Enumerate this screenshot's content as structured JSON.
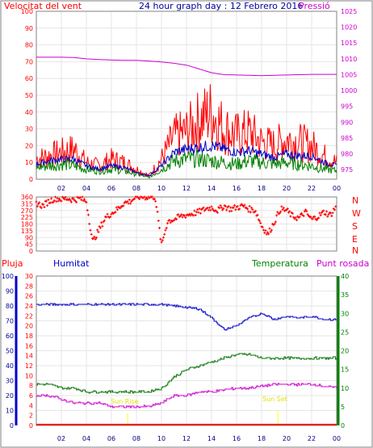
{
  "header": {
    "wind_label": "Velocitat del vent",
    "title": "24 hour graph day : 12 Febrero 2016",
    "pressure_label": "Pressió"
  },
  "direction_labels": [
    "N",
    "W",
    "S",
    "E",
    "N"
  ],
  "lower_header": {
    "rain_label": "Pluja",
    "humidity_label": "Humitat",
    "temp_label": "Temperatura",
    "dew_label": "Punt rosada"
  },
  "annotations": {
    "sunrise": "Sun Rise",
    "sunset": "Sun Set"
  },
  "colors": {
    "wind": "#ff0000",
    "wind_avg": "#0000c8",
    "wind_green": "#008000",
    "pressure": "#cc00cc",
    "direction": "#ff0000",
    "humidity": "#0000c8",
    "temperature": "#007000",
    "dewpoint": "#cc00cc",
    "rain": "#ff0000",
    "sun_marker": "#ffff00",
    "text_blue": "#0000a0",
    "text_green": "#008000"
  },
  "chart_data": [
    {
      "type": "line",
      "name": "wind-pressure",
      "x_ticks": [
        "02",
        "04",
        "06",
        "08",
        "10",
        "12",
        "14",
        "16",
        "18",
        "20",
        "22",
        "00"
      ],
      "y_left_ticks": [
        0,
        10,
        20,
        30,
        40,
        50,
        60,
        70,
        80,
        90,
        100
      ],
      "y_left_range": [
        0,
        100
      ],
      "y_right_ticks": [
        975,
        980,
        985,
        990,
        995,
        1000,
        1005,
        1010,
        1015,
        1020,
        1025
      ],
      "y_right_range": [
        972,
        1025
      ],
      "grid": true,
      "x": [
        0,
        1,
        2,
        3,
        4,
        5,
        6,
        7,
        8,
        9,
        10,
        11,
        12,
        13,
        14,
        15,
        16,
        17,
        18,
        19,
        20,
        21,
        22,
        23,
        24
      ],
      "series": [
        {
          "values": [
            12,
            14,
            16,
            18,
            10,
            8,
            12,
            10,
            6,
            2,
            12,
            25,
            28,
            35,
            40,
            30,
            26,
            28,
            22,
            20,
            24,
            22,
            20,
            14,
            10
          ]
        },
        {
          "values": [
            9,
            11,
            12,
            12,
            8,
            6,
            8,
            7,
            4,
            2,
            8,
            16,
            18,
            19,
            20,
            18,
            16,
            17,
            15,
            13,
            15,
            14,
            14,
            10,
            8
          ]
        },
        {
          "values": [
            7,
            8,
            9,
            8,
            6,
            5,
            6,
            5,
            3,
            1,
            6,
            11,
            12,
            12,
            11,
            10,
            9,
            11,
            10,
            9,
            10,
            9,
            8,
            6,
            5
          ]
        },
        {
          "values": [
            1010.5,
            1010.5,
            1010.5,
            1010.4,
            1010,
            1009.8,
            1009.6,
            1009.5,
            1009.5,
            1009.3,
            1009,
            1008.6,
            1008,
            1006.8,
            1005.6,
            1005.0,
            1004.9,
            1004.8,
            1004.7,
            1004.8,
            1004.9,
            1005.0,
            1005.1,
            1005.1,
            1005.1
          ]
        }
      ]
    },
    {
      "type": "scatter",
      "name": "wind-direction",
      "y_ticks": [
        0,
        45,
        90,
        135,
        180,
        225,
        270,
        315,
        360
      ],
      "y_range": [
        0,
        360
      ],
      "x": [
        0,
        0.5,
        1,
        1.5,
        2,
        2.5,
        3,
        3.5,
        4,
        4.5,
        5,
        5.5,
        6,
        6.5,
        7,
        7.5,
        8,
        8.5,
        9,
        9.5,
        10,
        10.5,
        11,
        11.5,
        12,
        12.5,
        13,
        13.5,
        14,
        14.5,
        15,
        15.5,
        16,
        16.5,
        17,
        17.5,
        18,
        18.5,
        19,
        19.5,
        20,
        20.5,
        21,
        21.5,
        22,
        22.5,
        23,
        23.5,
        24
      ],
      "values": [
        320,
        300,
        330,
        350,
        345,
        350,
        340,
        350,
        330,
        60,
        140,
        220,
        250,
        280,
        320,
        330,
        360,
        360,
        360,
        360,
        40,
        200,
        210,
        230,
        240,
        250,
        260,
        280,
        290,
        270,
        300,
        280,
        290,
        300,
        280,
        270,
        170,
        110,
        190,
        280,
        270,
        230,
        220,
        260,
        210,
        230,
        260,
        240,
        300
      ]
    },
    {
      "type": "line",
      "name": "humidity-temp-dew",
      "y_humidity_ticks": [
        0,
        10,
        20,
        30,
        40,
        50,
        60,
        70,
        80,
        90,
        100
      ],
      "y_humidity_range": [
        0,
        100
      ],
      "y_rain_ticks": [
        0,
        2,
        4,
        6,
        8,
        10,
        12,
        14,
        16,
        18,
        20,
        22,
        24,
        26,
        28,
        30
      ],
      "y_rain_range": [
        0,
        30
      ],
      "y_temp_ticks": [
        0,
        5,
        10,
        15,
        20,
        25,
        30,
        35,
        40
      ],
      "y_temp_range": [
        0,
        40
      ],
      "x": [
        0,
        1,
        2,
        3,
        4,
        5,
        6,
        7,
        8,
        9,
        10,
        11,
        12,
        13,
        14,
        15,
        16,
        17,
        18,
        19,
        20,
        21,
        22,
        23,
        24
      ],
      "series": [
        {
          "values": [
            81,
            81,
            81,
            81,
            81,
            81,
            81,
            81,
            81,
            81,
            81,
            80,
            79,
            78,
            72,
            64,
            67,
            72,
            75,
            71,
            73,
            72,
            73,
            71,
            71
          ]
        },
        {
          "values": [
            11,
            11,
            10,
            10,
            9,
            9,
            9,
            9,
            9,
            9,
            10,
            13,
            15,
            16,
            17,
            18,
            19,
            19,
            18,
            18,
            18,
            18,
            18,
            18,
            18
          ]
        },
        {
          "values": [
            8,
            8,
            7,
            6,
            6,
            6,
            5,
            5,
            5,
            5,
            6,
            8,
            8,
            9,
            9,
            9.5,
            10,
            10,
            10.5,
            11,
            11,
            11,
            11,
            10.5,
            10
          ]
        },
        {
          "values": [
            0,
            0,
            0,
            0,
            0,
            0,
            0,
            0,
            0,
            0,
            0,
            0,
            0,
            0,
            0,
            0,
            0,
            0,
            0,
            0,
            0,
            0,
            0,
            0,
            0
          ]
        }
      ]
    }
  ]
}
